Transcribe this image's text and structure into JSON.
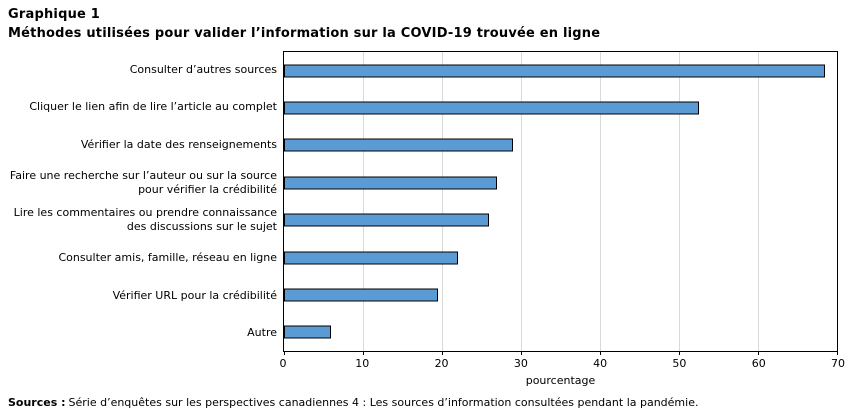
{
  "page": {
    "title_line1": "Graphique 1",
    "title_line2": "Méthodes utilisées pour valider l’information sur la COVID-19 trouvée en ligne",
    "footer_label": "Sources :",
    "footer_text": "Série d’enquêtes sur les perspectives canadiennes 4 : Les sources d’information consultées pendant la pandémie."
  },
  "chart_data": {
    "type": "bar",
    "orientation": "horizontal",
    "title": "Graphique 1 — Méthodes utilisées pour valider l’information sur la COVID-19 trouvée en ligne",
    "categories": [
      "Consulter d’autres sources",
      "Cliquer le lien afin de lire l’article au complet",
      "Vérifier la date des renseignements",
      "Faire une recherche sur l’auteur ou sur la source\npour vérifier la crédibilité",
      "Lire les commentaires ou prendre connaissance\ndes discussions sur le sujet",
      "Consulter amis, famille, réseau en ligne",
      "Vérifier URL pour la crédibilité",
      "Autre"
    ],
    "values": [
      68.5,
      52.5,
      29,
      27,
      26,
      22,
      19.5,
      6
    ],
    "xlabel": "pourcentage",
    "xlim": [
      0,
      70
    ],
    "xticks": [
      0,
      10,
      20,
      30,
      40,
      50,
      60,
      70
    ],
    "grid": true,
    "legend": false,
    "bar_color": "#5B9BD5",
    "bar_border_color": "#000000",
    "gridline_color": "#D9D9D9",
    "axis_color": "#000000"
  }
}
